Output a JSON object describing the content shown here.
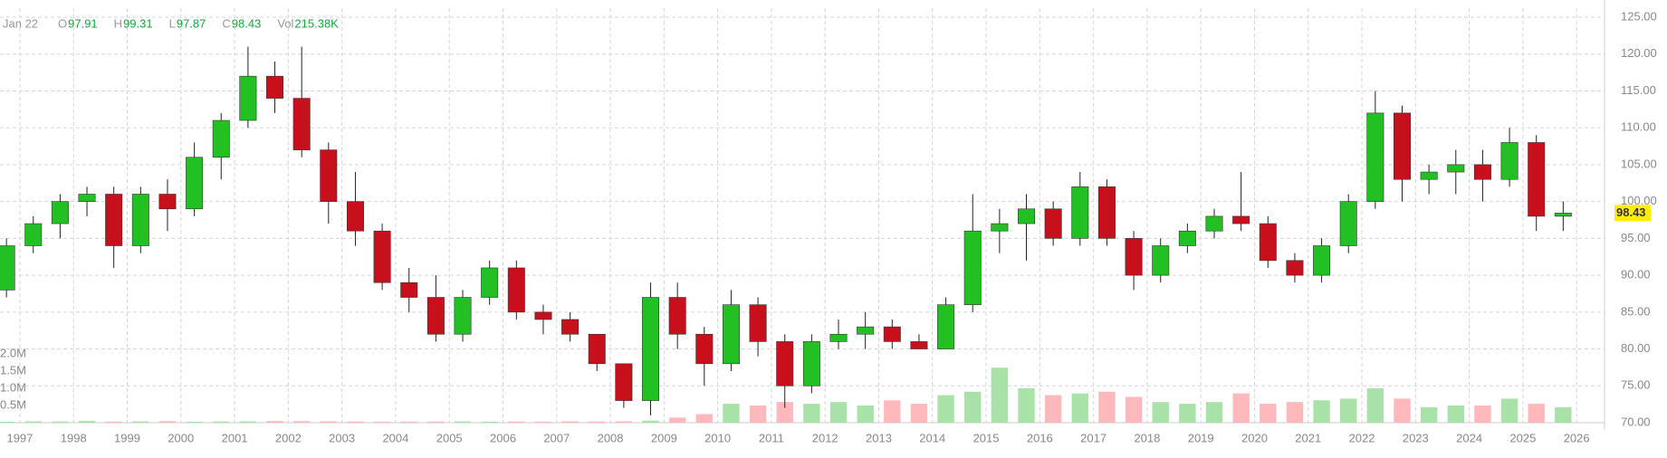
{
  "header": {
    "date": "Jan 22",
    "fields": [
      {
        "label": "O",
        "value": "97.91"
      },
      {
        "label": "H",
        "value": "99.31"
      },
      {
        "label": "L",
        "value": "97.87"
      },
      {
        "label": "C",
        "value": "98.43"
      },
      {
        "label": "Vol",
        "value": "215.38K"
      }
    ]
  },
  "chart_data": {
    "type": "candlestick",
    "x": [
      1996.75,
      1997.25,
      1997.75,
      1998.25,
      1998.75,
      1999.25,
      1999.75,
      2000.25,
      2000.75,
      2001.25,
      2001.75,
      2002.25,
      2002.75,
      2003.25,
      2003.75,
      2004.25,
      2004.75,
      2005.25,
      2005.75,
      2006.25,
      2006.75,
      2007.25,
      2007.75,
      2008.25,
      2008.75,
      2009.25,
      2009.75,
      2010.25,
      2010.75,
      2011.25,
      2011.75,
      2012.25,
      2012.75,
      2013.25,
      2013.75,
      2014.25,
      2014.75,
      2015.25,
      2015.75,
      2016.25,
      2016.75,
      2017.25,
      2017.75,
      2018.25,
      2018.75,
      2019.25,
      2019.75,
      2020.25,
      2020.75,
      2021.25,
      2021.75,
      2022.25,
      2022.75,
      2023.25,
      2023.75,
      2024.25,
      2024.75,
      2025.25,
      2025.75
    ],
    "open": [
      88,
      94,
      97,
      100,
      101,
      94,
      101,
      99,
      106,
      111,
      117,
      114,
      107,
      100,
      96,
      89,
      87,
      82,
      87,
      91,
      85,
      84,
      82,
      78,
      73,
      87,
      82,
      78,
      86,
      81,
      75,
      81,
      82,
      83,
      81,
      80,
      86,
      96,
      97,
      99,
      95,
      102,
      95,
      90,
      94,
      96,
      98,
      97,
      92,
      90,
      94,
      100,
      112,
      103,
      104,
      105,
      103,
      108,
      98
    ],
    "high": [
      95,
      98,
      101,
      102,
      102,
      102,
      103,
      108,
      112,
      121,
      119,
      121,
      108,
      104,
      97,
      91,
      90,
      88,
      92,
      92,
      86,
      85,
      82,
      78,
      89,
      89,
      83,
      88,
      87,
      82,
      82,
      84,
      85,
      84,
      82,
      87,
      101,
      99,
      101,
      100,
      104,
      103,
      96,
      95,
      97,
      99,
      104,
      98,
      93,
      95,
      101,
      115,
      113,
      105,
      107,
      107,
      110,
      109,
      100
    ],
    "low": [
      87,
      93,
      95,
      98,
      91,
      93,
      96,
      98,
      103,
      110,
      112,
      106,
      97,
      94,
      88,
      85,
      81,
      81,
      86,
      84,
      82,
      81,
      77,
      72,
      71,
      80,
      75,
      77,
      79,
      72,
      74,
      80,
      80,
      80,
      80,
      80,
      85,
      93,
      92,
      94,
      94,
      94,
      88,
      89,
      93,
      95,
      96,
      91,
      89,
      89,
      93,
      99,
      100,
      101,
      101,
      100,
      102,
      96,
      96
    ],
    "close": [
      94,
      97,
      100,
      101,
      94,
      101,
      99,
      106,
      111,
      117,
      114,
      107,
      100,
      96,
      89,
      87,
      82,
      87,
      91,
      85,
      84,
      82,
      78,
      73,
      87,
      82,
      78,
      86,
      81,
      75,
      81,
      82,
      83,
      81,
      80,
      86,
      96,
      97,
      99,
      95,
      102,
      95,
      90,
      94,
      96,
      98,
      97,
      92,
      90,
      94,
      100,
      112,
      103,
      104,
      105,
      103,
      108,
      98,
      98.43
    ],
    "volume": [
      30000,
      40000,
      35000,
      50000,
      30000,
      40000,
      45000,
      30000,
      35000,
      40000,
      50000,
      45000,
      40000,
      35000,
      30000,
      30000,
      35000,
      40000,
      30000,
      35000,
      30000,
      40000,
      35000,
      40000,
      60000,
      150000,
      250000,
      550000,
      500000,
      600000,
      550000,
      600000,
      500000,
      650000,
      550000,
      800000,
      900000,
      1600000,
      1000000,
      800000,
      850000,
      900000,
      750000,
      600000,
      550000,
      600000,
      850000,
      550000,
      600000,
      650000,
      700000,
      1000000,
      700000,
      450000,
      500000,
      500000,
      700000,
      550000,
      450000
    ],
    "xlim": [
      1996.63,
      2026.52
    ],
    "xticks": [
      1997,
      1998,
      1999,
      2000,
      2001,
      2002,
      2003,
      2004,
      2005,
      2006,
      2007,
      2008,
      2009,
      2010,
      2011,
      2012,
      2013,
      2014,
      2015,
      2016,
      2017,
      2018,
      2019,
      2020,
      2021,
      2022,
      2023,
      2024,
      2025,
      2026
    ],
    "ylim": [
      70,
      125
    ],
    "yticks": [
      {
        "value": 70,
        "label": "70.00"
      },
      {
        "value": 75,
        "label": "75.00"
      },
      {
        "value": 80,
        "label": "80.00"
      },
      {
        "value": 85,
        "label": "85.00"
      },
      {
        "value": 90,
        "label": "90.00"
      },
      {
        "value": 95,
        "label": "95.00"
      },
      {
        "value": 100,
        "label": "100.00"
      },
      {
        "value": 105,
        "label": "105.00"
      },
      {
        "value": 110,
        "label": "110.00"
      },
      {
        "value": 115,
        "label": "115.00"
      },
      {
        "value": 120,
        "label": "120.00"
      },
      {
        "value": 125,
        "label": "125.00"
      }
    ],
    "volume_lim": [
      0,
      2000000
    ],
    "volume_ticks": [
      {
        "value": 500000,
        "label": "0.5M"
      },
      {
        "value": 1000000,
        "label": "1.0M"
      },
      {
        "value": 1500000,
        "label": "1.5M"
      },
      {
        "value": 2000000,
        "label": "2.0M"
      }
    ],
    "up_color": "#22c022",
    "down_color": "#c8101c",
    "volume_up_color": "#a9e2a9",
    "volume_down_color": "#ffb8bc",
    "last_price_color": "#ffee00",
    "grid": true
  }
}
